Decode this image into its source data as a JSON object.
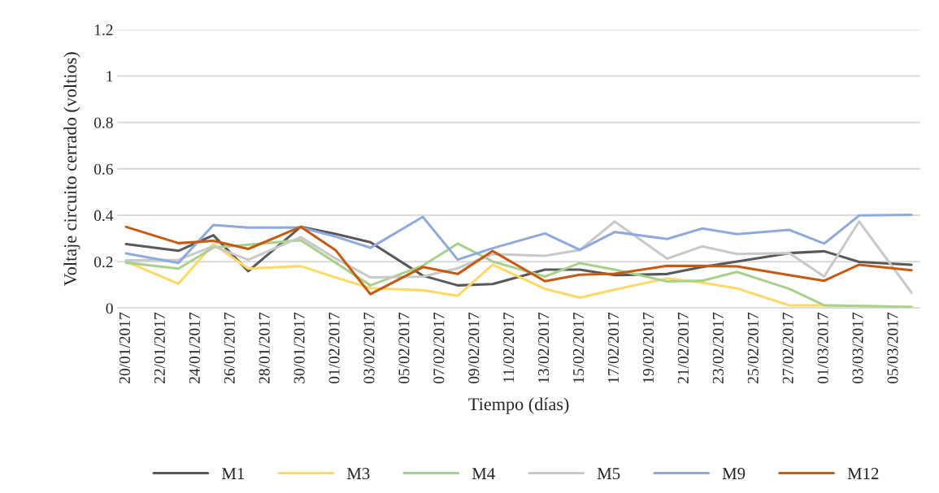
{
  "chart_data": {
    "type": "line",
    "xlabel": "Tiempo (días)",
    "ylabel": "Voltaje circuito cerrado (voltios)",
    "x": [
      "2017-01-20",
      "2017-01-23",
      "2017-01-25",
      "2017-01-27",
      "2017-01-30",
      "2017-02-01",
      "2017-02-03",
      "2017-02-06",
      "2017-02-08",
      "2017-02-10",
      "2017-02-13",
      "2017-02-15",
      "2017-02-17",
      "2017-02-20",
      "2017-02-22",
      "2017-02-24",
      "2017-02-27",
      "2017-03-01",
      "2017-03-03",
      "2017-03-06"
    ],
    "series": [
      {
        "name": "M1",
        "color": "#595959",
        "values": [
          0.276,
          0.247,
          0.314,
          0.159,
          0.35,
          0.32,
          0.284,
          0.14,
          0.098,
          0.104,
          0.166,
          0.166,
          0.142,
          0.147,
          0.177,
          0.201,
          0.237,
          0.245,
          0.199,
          0.187
        ]
      },
      {
        "name": "M3",
        "color": "#ffd966",
        "values": [
          0.2,
          0.105,
          0.276,
          0.17,
          0.181,
          0.132,
          0.086,
          0.077,
          0.053,
          0.187,
          0.083,
          0.045,
          0.08,
          0.128,
          0.11,
          0.085,
          0.012,
          0.012,
          0.009,
          0.005
        ]
      },
      {
        "name": "M4",
        "color": "#a9d18e",
        "values": [
          0.196,
          0.17,
          0.261,
          0.273,
          0.293,
          0.196,
          0.098,
          0.183,
          0.278,
          0.201,
          0.136,
          0.194,
          0.166,
          0.115,
          0.118,
          0.156,
          0.083,
          0.012,
          0.009,
          0.005
        ]
      },
      {
        "name": "M5",
        "color": "#c9c9c9",
        "values": [
          0.206,
          0.208,
          0.267,
          0.208,
          0.306,
          0.214,
          0.132,
          0.136,
          0.172,
          0.233,
          0.225,
          0.251,
          0.373,
          0.213,
          0.266,
          0.233,
          0.237,
          0.136,
          0.373,
          0.067
        ]
      },
      {
        "name": "M9",
        "color": "#8faadc",
        "values": [
          0.236,
          0.195,
          0.358,
          0.347,
          0.348,
          0.308,
          0.26,
          0.393,
          0.209,
          0.258,
          0.322,
          0.251,
          0.328,
          0.298,
          0.343,
          0.319,
          0.337,
          0.278,
          0.399,
          0.402
        ]
      },
      {
        "name": "M12",
        "color": "#c55a11",
        "values": [
          0.35,
          0.28,
          0.29,
          0.255,
          0.35,
          0.25,
          0.06,
          0.177,
          0.147,
          0.246,
          0.116,
          0.144,
          0.148,
          0.182,
          0.182,
          0.18,
          0.142,
          0.118,
          0.187,
          0.163
        ]
      }
    ],
    "xlim": [
      "2017-01-19T12:00",
      "2017-03-06T12:00"
    ],
    "xticks": [
      {
        "value": "2017-01-20",
        "label": "20/01/2017"
      },
      {
        "value": "2017-01-22",
        "label": "22/01/2017"
      },
      {
        "value": "2017-01-24",
        "label": "24/01/2017"
      },
      {
        "value": "2017-01-26",
        "label": "26/01/2017"
      },
      {
        "value": "2017-01-28",
        "label": "28/01/2017"
      },
      {
        "value": "2017-01-30",
        "label": "30/01/2017"
      },
      {
        "value": "2017-02-01",
        "label": "01/02/2017"
      },
      {
        "value": "2017-02-03",
        "label": "03/02/2017"
      },
      {
        "value": "2017-02-05",
        "label": "05/02/2017"
      },
      {
        "value": "2017-02-07",
        "label": "07/02/2017"
      },
      {
        "value": "2017-02-09",
        "label": "09/02/2017"
      },
      {
        "value": "2017-02-11",
        "label": "11/02/2017"
      },
      {
        "value": "2017-02-13",
        "label": "13/02/2017"
      },
      {
        "value": "2017-02-15",
        "label": "15/02/2017"
      },
      {
        "value": "2017-02-17",
        "label": "17/02/2017"
      },
      {
        "value": "2017-02-19",
        "label": "19/02/2017"
      },
      {
        "value": "2017-02-21",
        "label": "21/02/2017"
      },
      {
        "value": "2017-02-23",
        "label": "23/02/2017"
      },
      {
        "value": "2017-02-25",
        "label": "25/02/2017"
      },
      {
        "value": "2017-02-27",
        "label": "27/02/2017"
      },
      {
        "value": "2017-03-01",
        "label": "01/03/2017"
      },
      {
        "value": "2017-03-03",
        "label": "03/03/2017"
      },
      {
        "value": "2017-03-05",
        "label": "05/03/2017"
      }
    ],
    "ylim": [
      0,
      1.2
    ],
    "yticks": [
      0,
      0.2,
      0.4,
      0.6,
      0.8,
      1,
      1.2
    ],
    "grid": "y",
    "legend": "bottom",
    "marker": "none",
    "line_style": "solid"
  }
}
